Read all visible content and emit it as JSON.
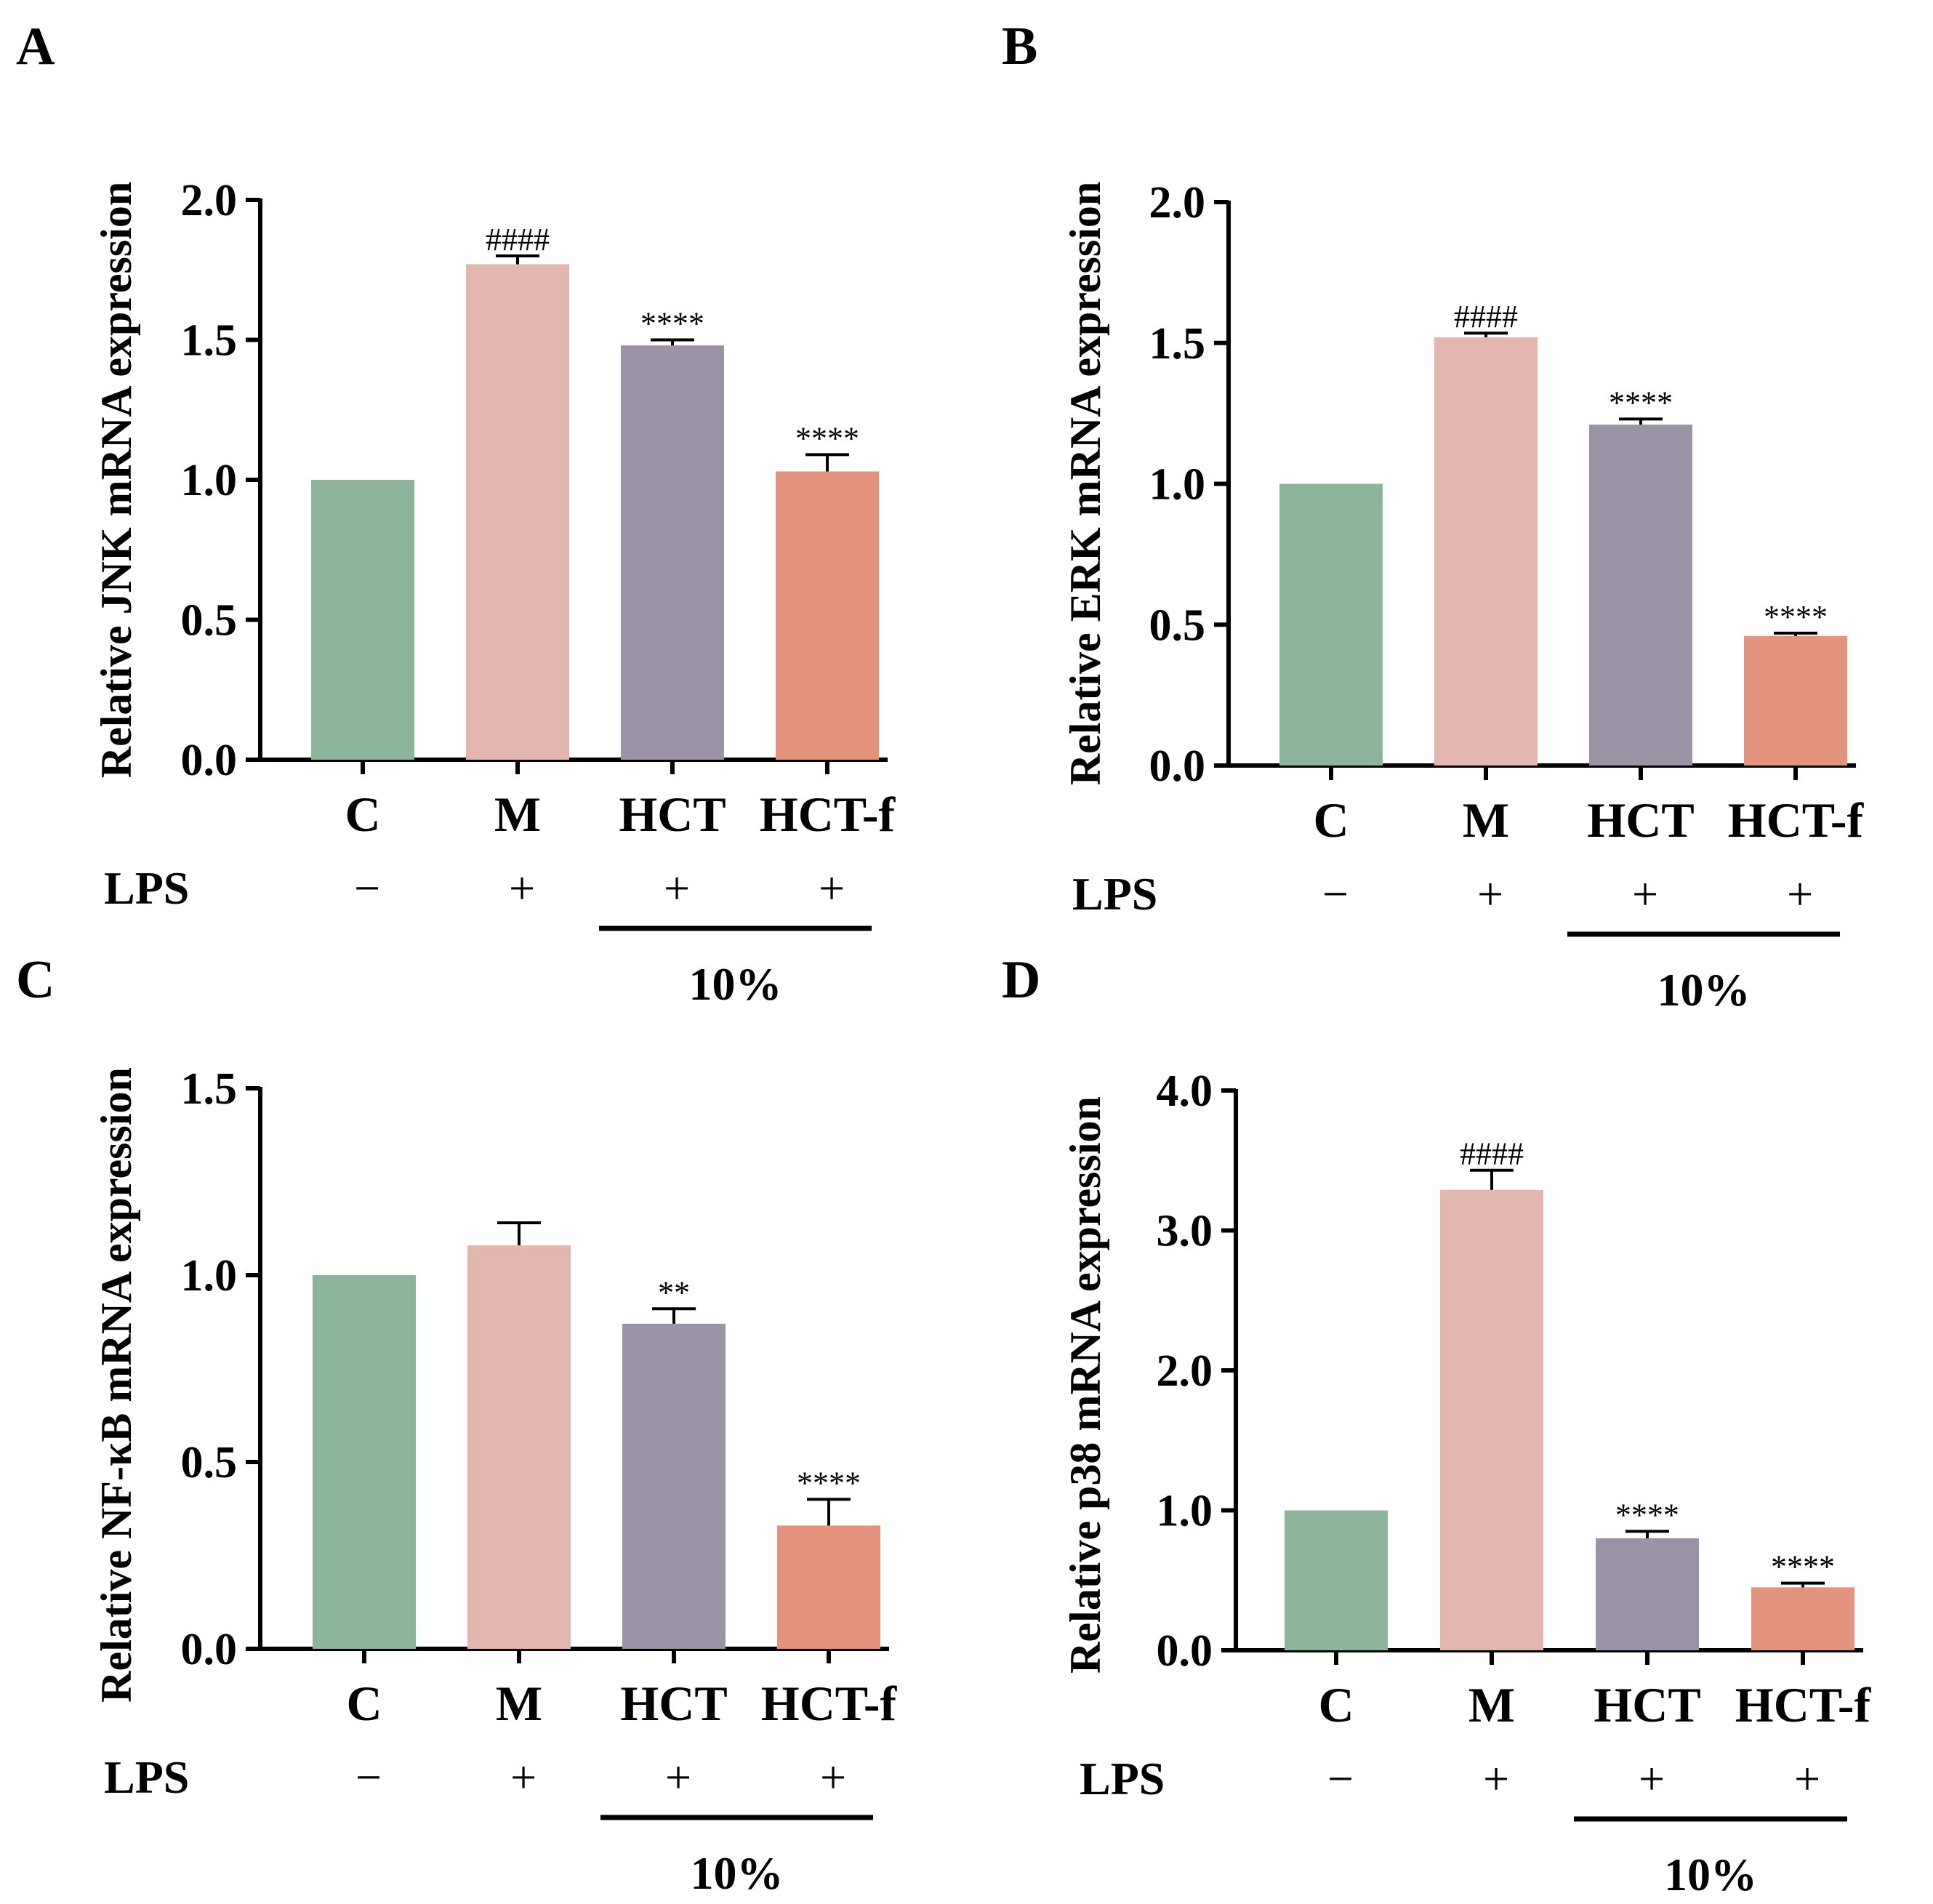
{
  "figure": {
    "colors": {
      "C": "#8db59b",
      "M": "#e3b6b0",
      "HCT": "#9a93a6",
      "HCT-f": "#e4937c",
      "axis": "#000000"
    },
    "treatment": {
      "row_label": "LPS",
      "signs": [
        "−",
        "+",
        "+",
        "+"
      ],
      "bracket_label": "10%"
    }
  },
  "chart_data": [
    {
      "type": "bar",
      "panel": "A",
      "ylabel": "Relative JNK mRNA expression",
      "categories": [
        "C",
        "M",
        "HCT",
        "HCT-f"
      ],
      "values": [
        1.0,
        1.77,
        1.48,
        1.03
      ],
      "errors": [
        0.0,
        0.03,
        0.02,
        0.06
      ],
      "significance": [
        "",
        "####",
        "****",
        "****"
      ],
      "ylim": [
        0,
        2.0
      ],
      "yticks": [
        0,
        0.5,
        1.0,
        1.5,
        2.0
      ],
      "ytick_labels": [
        "0.0",
        "0.5",
        "1.0",
        "1.5",
        "2.0"
      ]
    },
    {
      "type": "bar",
      "panel": "B",
      "ylabel": "Relative ERK mRNA expression",
      "categories": [
        "C",
        "M",
        "HCT",
        "HCT-f"
      ],
      "values": [
        1.0,
        1.52,
        1.21,
        0.46
      ],
      "errors": [
        0.0,
        0.015,
        0.02,
        0.01
      ],
      "significance": [
        "",
        "####",
        "****",
        "****"
      ],
      "ylim": [
        0,
        2.0
      ],
      "yticks": [
        0,
        0.5,
        1.0,
        1.5,
        2.0
      ],
      "ytick_labels": [
        "0.0",
        "0.5",
        "1.0",
        "1.5",
        "2.0"
      ]
    },
    {
      "type": "bar",
      "panel": "C",
      "ylabel": "Relative NF-κB mRNA expression",
      "categories": [
        "C",
        "M",
        "HCT",
        "HCT-f"
      ],
      "values": [
        1.0,
        1.08,
        0.87,
        0.33
      ],
      "errors": [
        0.0,
        0.06,
        0.04,
        0.07
      ],
      "significance": [
        "",
        "",
        "**",
        "****"
      ],
      "ylim": [
        0,
        1.5
      ],
      "yticks": [
        0,
        0.5,
        1.0,
        1.5
      ],
      "ytick_labels": [
        "0.0",
        "0.5",
        "1.0",
        "1.5"
      ]
    },
    {
      "type": "bar",
      "panel": "D",
      "ylabel": "Relative p38 mRNA expression",
      "categories": [
        "C",
        "M",
        "HCT",
        "HCT-f"
      ],
      "values": [
        1.0,
        3.29,
        0.8,
        0.45
      ],
      "errors": [
        0.0,
        0.14,
        0.05,
        0.03
      ],
      "significance": [
        "",
        "####",
        "****",
        "****"
      ],
      "ylim": [
        0,
        4.0
      ],
      "yticks": [
        0,
        1.0,
        2.0,
        3.0,
        4.0
      ],
      "ytick_labels": [
        "0.0",
        "1.0",
        "2.0",
        "3.0",
        "4.0"
      ]
    }
  ]
}
